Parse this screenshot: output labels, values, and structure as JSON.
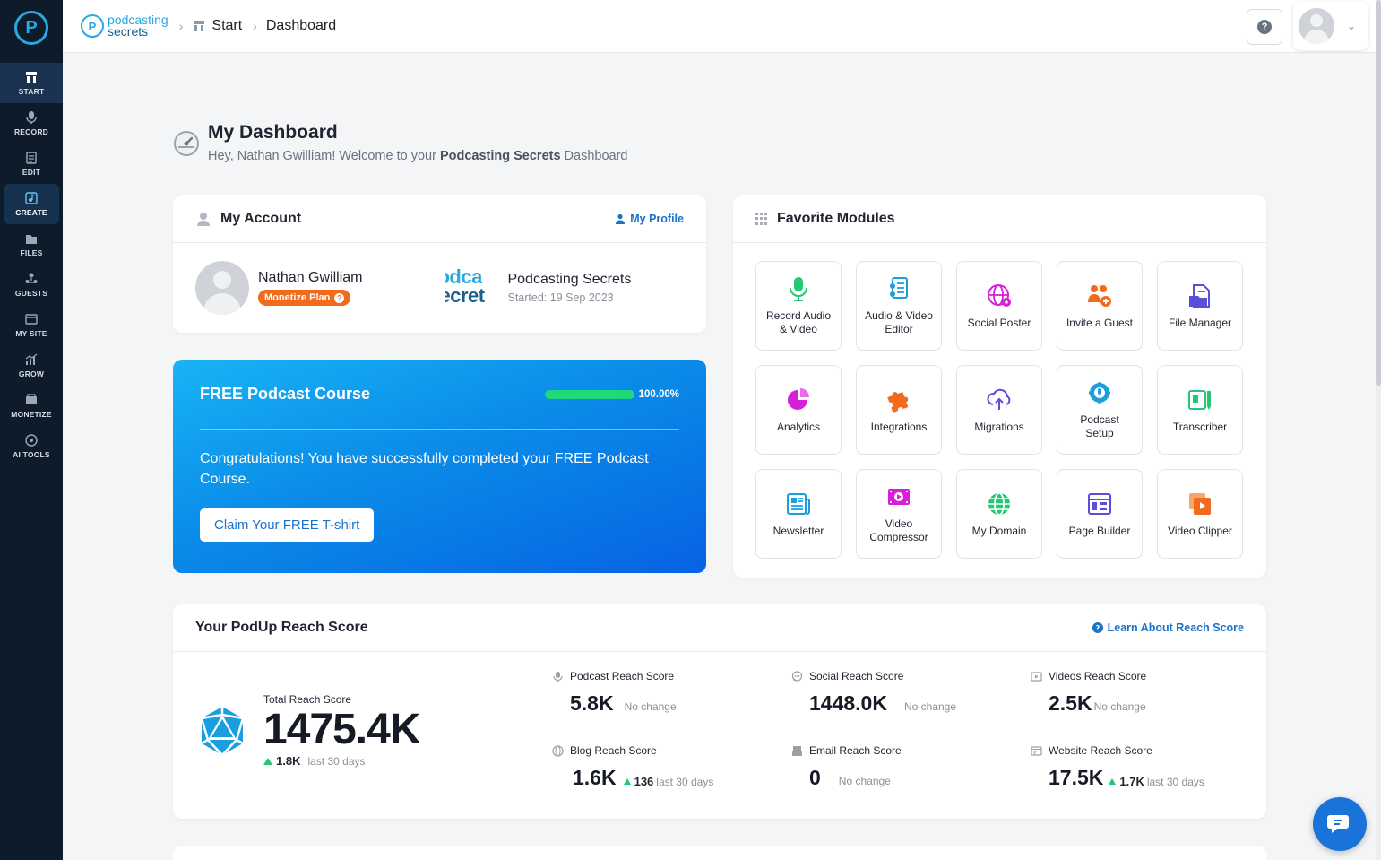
{
  "sidebar": {
    "items": [
      {
        "label": "START",
        "icon": "start-icon"
      },
      {
        "label": "RECORD",
        "icon": "mic-icon"
      },
      {
        "label": "EDIT",
        "icon": "edit-icon"
      },
      {
        "label": "CREATE",
        "icon": "create-icon"
      },
      {
        "label": "FILES",
        "icon": "files-icon"
      },
      {
        "label": "GUESTS",
        "icon": "guests-icon"
      },
      {
        "label": "MY SITE",
        "icon": "site-icon"
      },
      {
        "label": "GROW",
        "icon": "grow-icon"
      },
      {
        "label": "MONETIZE",
        "icon": "monetize-icon"
      },
      {
        "label": "AI TOOLS",
        "icon": "ai-icon"
      }
    ]
  },
  "header": {
    "brand_line1": "podcasting",
    "brand_line2": "secrets",
    "breadcrumb": [
      "Start",
      "Dashboard"
    ]
  },
  "page": {
    "title": "My Dashboard",
    "subtitle_prefix": "Hey, Nathan Gwilliam! Welcome to your ",
    "subtitle_brand": "Podcasting Secrets",
    "subtitle_suffix": " Dashboard"
  },
  "account": {
    "title": "My Account",
    "profile_link": "My Profile",
    "user_name": "Nathan Gwilliam",
    "plan": "Monetize Plan",
    "podcast_logo_line1": "odca",
    "podcast_logo_line2": "ecret",
    "podcast_name": "Podcasting Secrets",
    "started": "Started: 19 Sep 2023"
  },
  "course": {
    "title": "FREE Podcast Course",
    "progress": 100,
    "progress_label": "100.00%",
    "message": "Congratulations! You have successfully completed your FREE Podcast Course.",
    "button": "Claim Your FREE T-shirt"
  },
  "favorites": {
    "title": "Favorite Modules",
    "modules": [
      {
        "label": "Record Audio & Video",
        "icon": "mic-icon",
        "color": "#22c873"
      },
      {
        "label": "Audio & Video Editor",
        "icon": "editor-icon",
        "color": "#1a9ee0"
      },
      {
        "label": "Social Poster",
        "icon": "globe-share-icon",
        "color": "#d61fd6"
      },
      {
        "label": "Invite a Guest",
        "icon": "invite-icon",
        "color": "#f26a1b"
      },
      {
        "label": "File Manager",
        "icon": "file-manager-icon",
        "color": "#5a4fd8"
      },
      {
        "label": "Analytics",
        "icon": "pie-chart-icon",
        "color": "#d61fd6"
      },
      {
        "label": "Integrations",
        "icon": "puzzle-icon",
        "color": "#f26a1b"
      },
      {
        "label": "Migrations",
        "icon": "cloud-upload-icon",
        "color": "#5a4fd8"
      },
      {
        "label": "Podcast Setup",
        "icon": "podcast-setup-icon",
        "color": "#1a9ee0"
      },
      {
        "label": "Transcriber",
        "icon": "transcriber-icon",
        "color": "#22c873"
      },
      {
        "label": "Newsletter",
        "icon": "newsletter-icon",
        "color": "#1a9ee0"
      },
      {
        "label": "Video Compressor",
        "icon": "video-compressor-icon",
        "color": "#d61fd6"
      },
      {
        "label": "My Domain",
        "icon": "domain-globe-icon",
        "color": "#22c873"
      },
      {
        "label": "Page Builder",
        "icon": "page-builder-icon",
        "color": "#5a4fd8"
      },
      {
        "label": "Video Clipper",
        "icon": "video-clipper-icon",
        "color": "#f26a1b"
      }
    ]
  },
  "reach": {
    "title": "Your PodUp Reach Score",
    "learn_link": "Learn About Reach Score",
    "total_label": "Total Reach Score",
    "total_value": "1475.4K",
    "total_change": "1.8K",
    "total_period": "last 30 days",
    "metrics": [
      {
        "label": "Podcast Reach Score",
        "value": "5.8K",
        "note": "No change",
        "icon": "mic-icon"
      },
      {
        "label": "Social Reach Score",
        "value": "1448.0K",
        "note": "No change",
        "icon": "chat-icon"
      },
      {
        "label": "Videos Reach Score",
        "value": "2.5K",
        "note": "No change",
        "icon": "video-icon"
      },
      {
        "label": "Blog Reach Score",
        "value": "1.6K",
        "delta": "136",
        "period": "last 30 days",
        "icon": "globe-icon"
      },
      {
        "label": "Email Reach Score",
        "value": "0",
        "note": "No change",
        "icon": "inbox-icon"
      },
      {
        "label": "Website Reach Score",
        "value": "17.5K",
        "delta": "1.7K",
        "period": "last 30 days",
        "icon": "browser-icon"
      }
    ]
  }
}
